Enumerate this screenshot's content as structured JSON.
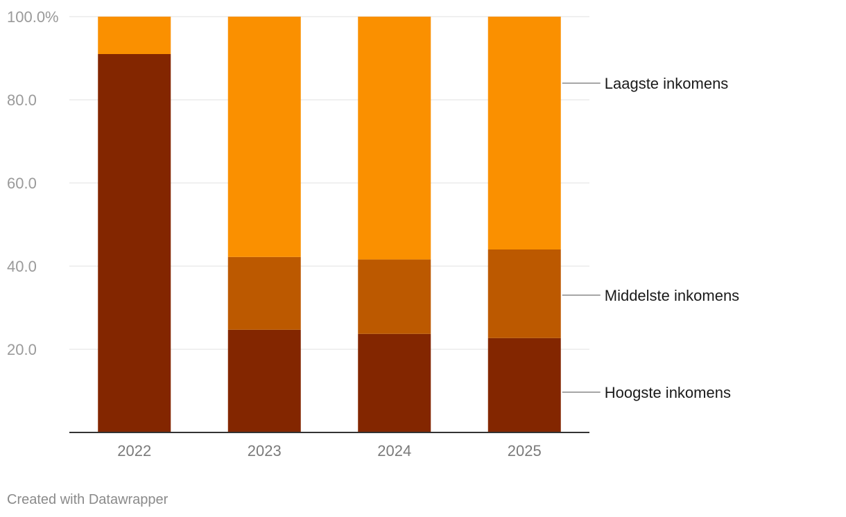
{
  "chart_data": {
    "type": "bar",
    "stacked": true,
    "categories": [
      "2022",
      "2023",
      "2024",
      "2025"
    ],
    "series": [
      {
        "name": "Hoogste inkomens",
        "color": "#832600",
        "values": [
          91.0,
          24.7,
          23.7,
          22.7
        ]
      },
      {
        "name": "Middelste inkomens",
        "color": "#bc5900",
        "values": [
          0.0,
          17.5,
          17.9,
          21.3
        ]
      },
      {
        "name": "Laagste inkomens",
        "color": "#fa9000",
        "values": [
          9.0,
          57.8,
          58.4,
          56.0
        ]
      }
    ],
    "yticks": [
      {
        "value": 100,
        "label": "100.0%"
      },
      {
        "value": 80,
        "label": "80.0"
      },
      {
        "value": 60,
        "label": "60.0"
      },
      {
        "value": 40,
        "label": "40.0"
      },
      {
        "value": 20,
        "label": "20.0"
      }
    ],
    "ylim": [
      0,
      100
    ],
    "title": "",
    "xlabel": "",
    "ylabel": "",
    "legend": "right, direct labels"
  },
  "credit": "Created with Datawrapper"
}
